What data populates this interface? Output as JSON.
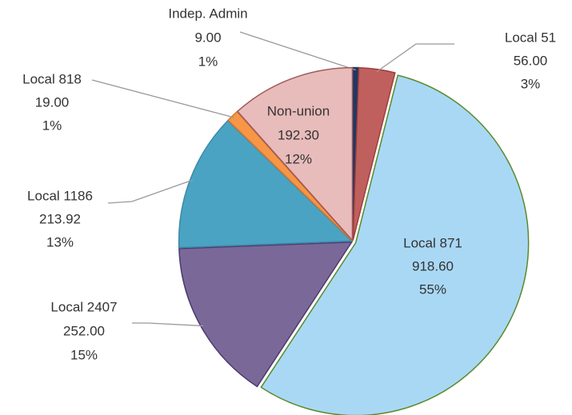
{
  "chart_data": {
    "type": "pie",
    "categories": [
      "Indep. Admin",
      "Local 51",
      "Local 871",
      "Local 2407",
      "Local 1186",
      "Local 818",
      "Non-union"
    ],
    "values": [
      9.0,
      56.0,
      918.6,
      252.0,
      213.92,
      19.0,
      192.3
    ],
    "value_labels": [
      "9.00",
      "56.00",
      "918.60",
      "252.00",
      "213.92",
      "19.00",
      "192.30"
    ],
    "percent_labels": [
      "1%",
      "3%",
      "55%",
      "15%",
      "13%",
      "1%",
      "12%"
    ],
    "colors": [
      "#1f3864",
      "#c0605e",
      "#a9d8f5",
      "#7a6898",
      "#4ba3c3",
      "#f79646",
      "#e8bcbb"
    ]
  }
}
